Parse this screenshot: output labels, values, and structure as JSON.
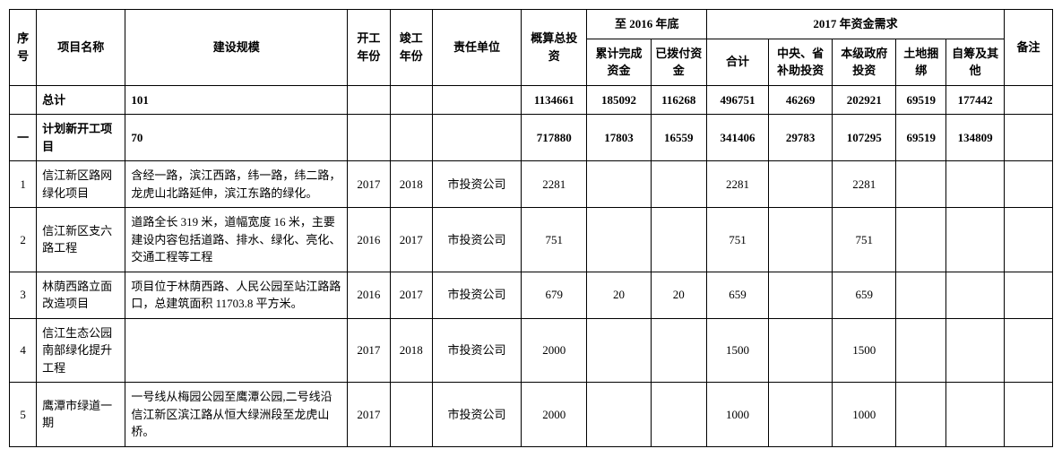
{
  "header": {
    "seq": "序号",
    "name": "项目名称",
    "scale": "建设规模",
    "start": "开工年份",
    "end": "竣工年份",
    "unit": "责任单位",
    "est": "概算总投资",
    "to2016": "至 2016 年底",
    "cum": "累计完成资金",
    "paid": "已拨付资金",
    "y2017": "2017 年资金需求",
    "sum": "合计",
    "sub": "中央、省补助投资",
    "gov": "本级政府投资",
    "land": "土地捆绑",
    "self": "自筹及其他",
    "note": "备注"
  },
  "rows": {
    "total": {
      "seq": "",
      "name": "总计",
      "scale": "101",
      "est": "1134661",
      "cum": "185092",
      "paid": "116268",
      "sum": "496751",
      "sub": "46269",
      "gov": "202921",
      "land": "69519",
      "self": "177442"
    },
    "group1": {
      "seq": "一",
      "name": "计划新开工项目",
      "scale": "70",
      "est": "717880",
      "cum": "17803",
      "paid": "16559",
      "sum": "341406",
      "sub": "29783",
      "gov": "107295",
      "land": "69519",
      "self": "134809"
    },
    "r1": {
      "seq": "1",
      "name": "信江新区路网绿化项目",
      "scale": "含经一路，滨江西路，纬一路，纬二路，龙虎山北路延伸，滨江东路的绿化。",
      "start": "2017",
      "end": "2018",
      "unit": "市投资公司",
      "est": "2281",
      "sum": "2281",
      "gov": "2281"
    },
    "r2": {
      "seq": "2",
      "name": "信江新区支六路工程",
      "scale": "道路全长 319 米，道幅宽度 16 米，主要建设内容包括道路、排水、绿化、亮化、交通工程等工程",
      "start": "2016",
      "end": "2017",
      "unit": "市投资公司",
      "est": "751",
      "sum": "751",
      "gov": "751"
    },
    "r3": {
      "seq": "3",
      "name": "林荫西路立面改造项目",
      "scale": "项目位于林荫西路、人民公园至站江路路口，总建筑面积 11703.8 平方米。",
      "start": "2016",
      "end": "2017",
      "unit": "市投资公司",
      "est": "679",
      "cum": "20",
      "paid": "20",
      "sum": "659",
      "gov": "659"
    },
    "r4": {
      "seq": "4",
      "name": "信江生态公园南部绿化提升工程",
      "scale": "",
      "start": "2017",
      "end": "2018",
      "unit": "市投资公司",
      "est": "2000",
      "sum": "1500",
      "gov": "1500"
    },
    "r5": {
      "seq": "5",
      "name": "鹰潭市绿道一期",
      "scale": "一号线从梅园公园至鹰潭公园,二号线沿信江新区滨江路从恒大绿洲段至龙虎山桥。",
      "start": "2017",
      "end": "",
      "unit": "市投资公司",
      "est": "2000",
      "sum": "1000",
      "gov": "1000"
    }
  }
}
